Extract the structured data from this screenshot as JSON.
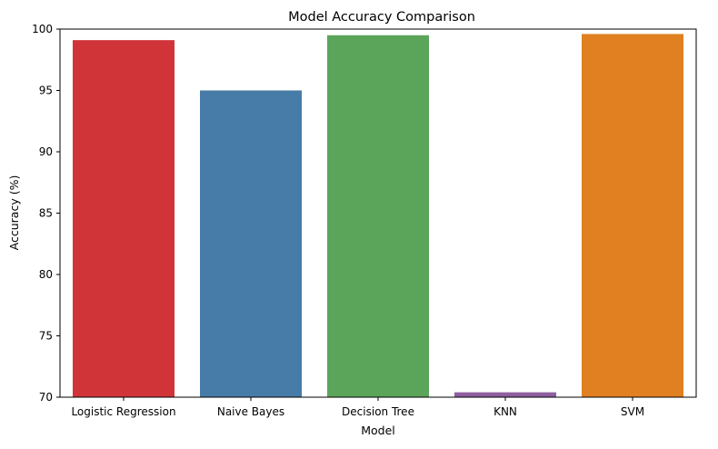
{
  "chart_data": {
    "type": "bar",
    "title": "Model Accuracy Comparison",
    "xlabel": "Model",
    "ylabel": "Accuracy (%)",
    "categories": [
      "Logistic Regression",
      "Naive Bayes",
      "Decision Tree",
      "KNN",
      "SVM"
    ],
    "values": [
      99.1,
      95.0,
      99.5,
      70.4,
      99.6
    ],
    "colors": [
      "#d03438",
      "#477ca8",
      "#5ba55a",
      "#8f5ea0",
      "#e08020"
    ],
    "ylim": [
      70,
      100
    ],
    "yticks": [
      70,
      75,
      80,
      85,
      90,
      95,
      100
    ],
    "grid": false,
    "legend": "none"
  }
}
